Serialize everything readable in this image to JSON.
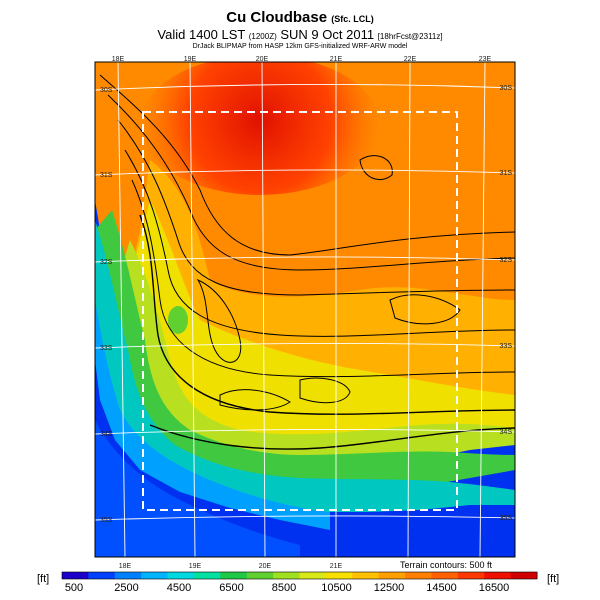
{
  "header": {
    "title": "Cu Cloudbase",
    "title_suffix": "(Sfc. LCL)",
    "valid_prefix": "Valid 1400 LST",
    "valid_code": "(1200Z)",
    "valid_date": "SUN 9 Oct 2011",
    "valid_fcst": "[18hrFcst@2311z]",
    "subtitle": "DrJack BLIPMAP from HASP 12km GFS-initialized WRF-ARW model"
  },
  "map": {
    "top_lon_labels": [
      "18E",
      "19E",
      "20E",
      "21E",
      "22E",
      "23E"
    ],
    "bottom_lon_labels": [
      "18E",
      "19E",
      "20E",
      "21E"
    ],
    "left_lat_labels": [
      "30S",
      "31S",
      "32S",
      "33S",
      "34S",
      "35S"
    ],
    "right_lat_labels": [
      "30S",
      "31S",
      "32S",
      "33S",
      "34S",
      "35S"
    ],
    "terrain_note": "Terrain contours: 500 ft"
  },
  "colorbar": {
    "unit": "[ft]",
    "tick_labels": [
      "500",
      "2500",
      "4500",
      "6500",
      "8500",
      "10500",
      "12500",
      "14500",
      "16500"
    ],
    "colors": [
      "#1a00c8",
      "#0040ff",
      "#0080ff",
      "#00b4ff",
      "#00d8e0",
      "#00e0a0",
      "#20c848",
      "#60d030",
      "#a0e020",
      "#d8e818",
      "#f8e000",
      "#ffc000",
      "#ffa000",
      "#ff8000",
      "#ff6000",
      "#ff3800",
      "#f01000",
      "#d00000"
    ]
  }
}
